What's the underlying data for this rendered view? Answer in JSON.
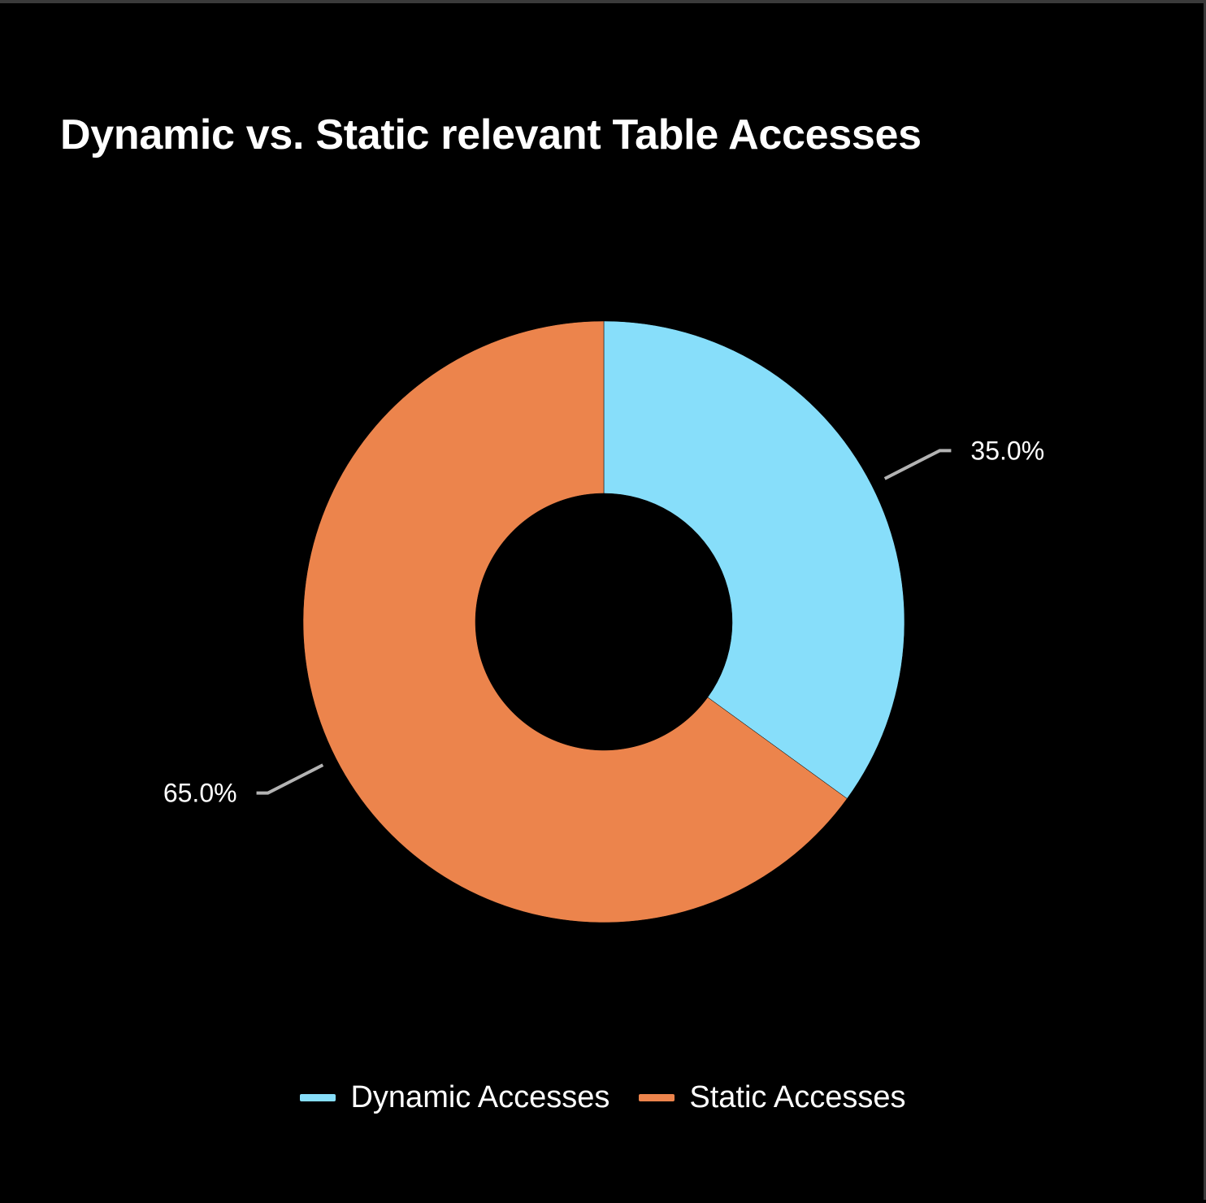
{
  "chart_data": {
    "type": "pie",
    "variant": "donut",
    "title": "Dynamic vs. Static relevant Table Accesses",
    "categories": [
      "Dynamic Accesses",
      "Static Accesses"
    ],
    "values": [
      35.0,
      65.0
    ],
    "labels": [
      "35.0%",
      "65.0%"
    ],
    "colors": [
      "#87DEFA",
      "#EC844C"
    ],
    "legend_position": "bottom-center"
  }
}
